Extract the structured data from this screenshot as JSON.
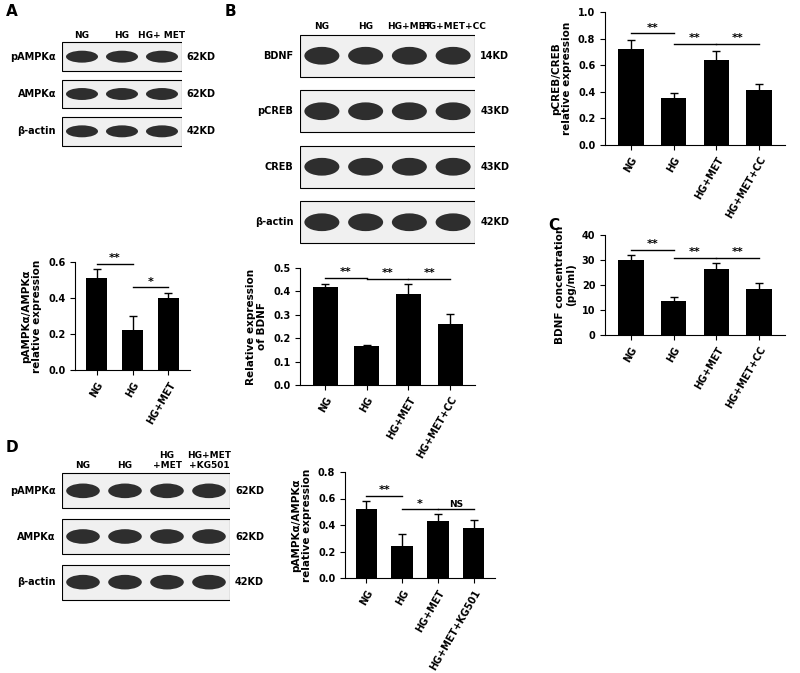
{
  "blots": [
    {
      "panel": "A",
      "lanes": [
        "NG",
        "HG",
        "HG+ MET"
      ],
      "rows": [
        {
          "name": "pAMPKα",
          "size": "62KD"
        },
        {
          "name": "AMPKα",
          "size": "62KD"
        },
        {
          "name": "β-actin",
          "size": "42KD"
        }
      ]
    },
    {
      "panel": "B",
      "lanes": [
        "NG",
        "HG",
        "HG+MET",
        "HG+MET+CC"
      ],
      "rows": [
        {
          "name": "BDNF",
          "size": "14KD"
        },
        {
          "name": "pCREB",
          "size": "43KD"
        },
        {
          "name": "CREB",
          "size": "43KD"
        },
        {
          "name": "β-actin",
          "size": "42KD"
        }
      ]
    },
    {
      "panel": "D",
      "lanes": [
        "NG",
        "HG",
        "HG\n+MET",
        "HG+MET\n+KG501"
      ],
      "rows": [
        {
          "name": "pAMPKα",
          "size": "62KD"
        },
        {
          "name": "AMPKα",
          "size": "62KD"
        },
        {
          "name": "β-actin",
          "size": "42KD"
        }
      ]
    }
  ],
  "chart_data": [
    {
      "type": "bar",
      "ylabel": "pAMPKα/AMPKα\nrelative expression",
      "categories": [
        "NG",
        "HG",
        "HG+MET"
      ],
      "values": [
        0.51,
        0.22,
        0.4
      ],
      "errors": [
        0.05,
        0.08,
        0.03
      ],
      "color": "#000000",
      "ylim": [
        0,
        0.6
      ],
      "yticks": [
        {
          "value": 0,
          "label": "0.0"
        },
        0.2,
        0.4,
        0.6
      ],
      "annotations": [
        {
          "between": [
            "NG",
            "HG"
          ],
          "text": "**"
        },
        {
          "between": [
            "HG",
            "HG+MET"
          ],
          "text": "*"
        }
      ]
    },
    {
      "type": "bar",
      "ylabel": "pCREB/CREB\nrelative expression",
      "categories": [
        "NG",
        "HG",
        "HG+MET",
        "HG+MET+CC"
      ],
      "values": [
        0.72,
        0.35,
        0.64,
        0.41
      ],
      "errors": [
        0.07,
        0.04,
        0.07,
        0.05
      ],
      "color": "#000000",
      "ylim": [
        0,
        1.0
      ],
      "yticks": [
        {
          "value": 0,
          "label": "0.0"
        },
        0.2,
        0.4,
        0.6,
        0.8,
        {
          "value": 1.0,
          "label": "1.0"
        }
      ],
      "annotations": [
        {
          "between": [
            "NG",
            "HG"
          ],
          "text": "**"
        },
        {
          "between": [
            "HG",
            "HG+MET"
          ],
          "text": "**"
        },
        {
          "between": [
            "HG+MET",
            "HG+MET+CC"
          ],
          "text": "**"
        }
      ]
    },
    {
      "type": "bar",
      "ylabel": "Relative expression\nof BDNF",
      "categories": [
        "NG",
        "HG",
        "HG+MET",
        "HG+MET+CC"
      ],
      "values": [
        0.42,
        0.165,
        0.39,
        0.26
      ],
      "errors": [
        0.012,
        0.006,
        0.04,
        0.045
      ],
      "color": "#000000",
      "ylim": [
        0,
        0.5
      ],
      "yticks": [
        {
          "value": 0,
          "label": "0.0"
        },
        0.1,
        0.2,
        0.3,
        0.4,
        0.5
      ],
      "annotations": [
        {
          "between": [
            "NG",
            "HG"
          ],
          "text": "**"
        },
        {
          "between": [
            "HG",
            "HG+MET"
          ],
          "text": "**"
        },
        {
          "between": [
            "HG+MET",
            "HG+MET+CC"
          ],
          "text": "**"
        }
      ]
    },
    {
      "type": "bar",
      "panel": "C",
      "ylabel": "BDNF concentration\n(pg/ml)",
      "categories": [
        "NG",
        "HG",
        "HG+MET",
        "HG+MET+CC"
      ],
      "values": [
        30,
        13.5,
        26.5,
        18.5
      ],
      "errors": [
        2.2,
        1.8,
        2.5,
        2.5
      ],
      "color": "#000000",
      "ylim": [
        0,
        40
      ],
      "yticks": [
        0,
        10,
        20,
        30,
        40
      ],
      "annotations": [
        {
          "between": [
            "NG",
            "HG"
          ],
          "text": "**"
        },
        {
          "between": [
            "HG",
            "HG+MET"
          ],
          "text": "**"
        },
        {
          "between": [
            "HG+MET",
            "HG+MET+CC"
          ],
          "text": "**"
        }
      ]
    },
    {
      "type": "bar",
      "ylabel": "pAMPKα/AMPKα\nrelative expression",
      "categories": [
        "NG",
        "HG",
        "HG+MET",
        "HG+MET+KG501"
      ],
      "values": [
        0.52,
        0.24,
        0.43,
        0.38
      ],
      "errors": [
        0.06,
        0.09,
        0.05,
        0.06
      ],
      "color": "#000000",
      "ylim": [
        0,
        0.8
      ],
      "yticks": [
        {
          "value": 0,
          "label": "0.0"
        },
        0.2,
        0.4,
        0.6,
        0.8
      ],
      "annotations": [
        {
          "between": [
            "NG",
            "HG"
          ],
          "text": "**"
        },
        {
          "between": [
            "HG",
            "HG+MET"
          ],
          "text": "*"
        },
        {
          "between": [
            "HG+MET",
            "HG+MET+KG501"
          ],
          "text": "NS"
        }
      ]
    }
  ]
}
